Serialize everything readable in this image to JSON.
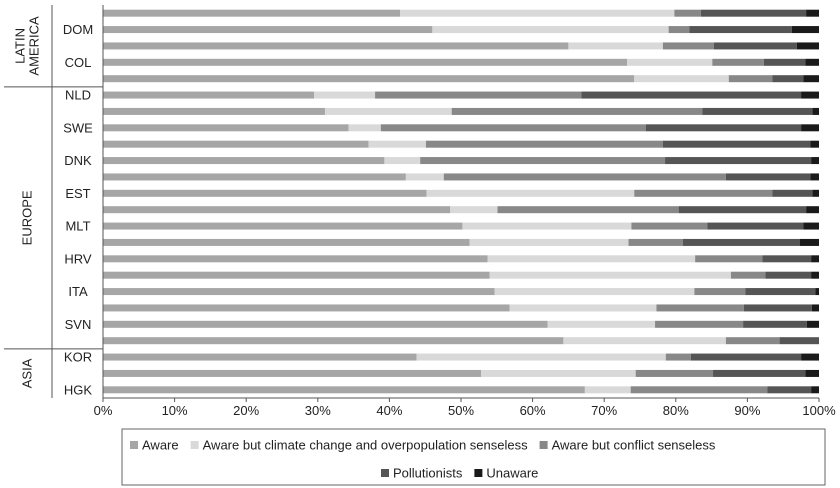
{
  "chart_data": {
    "type": "bar",
    "orientation": "horizontal",
    "stacked": true,
    "xlim": [
      0,
      100
    ],
    "x_ticks": [
      "0%",
      "10%",
      "20%",
      "30%",
      "40%",
      "50%",
      "60%",
      "70%",
      "80%",
      "90%",
      "100%"
    ],
    "grid": false,
    "legend_position": "bottom",
    "regions": [
      {
        "name": "LATIN AMERICA",
        "lines": [
          "LATIN",
          "AMERICA"
        ],
        "first_row": 0,
        "last_row": 4
      },
      {
        "name": "EUROPE",
        "lines": [
          "EUROPE"
        ],
        "first_row": 5,
        "last_row": 20
      },
      {
        "name": "ASIA",
        "lines": [
          "ASIA"
        ],
        "first_row": 21,
        "last_row": 23
      }
    ],
    "row_labels": [
      "",
      "DOM",
      "",
      "COL",
      "",
      "NLD",
      "",
      "SWE",
      "",
      "DNK",
      "",
      "EST",
      "",
      "MLT",
      "",
      "HRV",
      "",
      "ITA",
      "",
      "SVN",
      "",
      "KOR",
      "",
      "HGK"
    ],
    "series": [
      {
        "name": "Aware",
        "color": "#a6a6a6",
        "values": [
          41.5,
          46,
          65,
          73.2,
          74.2,
          29.5,
          31,
          34.3,
          37.1,
          39.3,
          42.3,
          45.2,
          48.5,
          50.2,
          51.2,
          53.7,
          54,
          54.7,
          56.8,
          62.1,
          64.3,
          43.8,
          52.8,
          67.3
        ]
      },
      {
        "name": "Aware but climate change and overpopulation senseless",
        "color": "#d9d9d9",
        "values": [
          38.3,
          33,
          13.2,
          11.9,
          13.2,
          8.5,
          17.7,
          4.5,
          8,
          5,
          5.3,
          29,
          6.6,
          23.6,
          22.2,
          29,
          33.7,
          27.9,
          20.5,
          15,
          22.7,
          34.8,
          21.6,
          6.4
        ]
      },
      {
        "name": "Aware but conflict senseless",
        "color": "#888888",
        "values": [
          3.7,
          2.9,
          7.1,
          7.2,
          6.1,
          28.8,
          35,
          37,
          33.1,
          34.2,
          39.4,
          19.3,
          25.3,
          10.6,
          7.6,
          9.4,
          4.8,
          7.1,
          12.2,
          12.3,
          7.5,
          3.5,
          10.8,
          19.1
        ]
      },
      {
        "name": "Pollutionists",
        "color": "#555555",
        "values": [
          14.7,
          14.3,
          11.6,
          5.8,
          4.3,
          30.7,
          15.4,
          21.7,
          20.6,
          20.4,
          11.8,
          5.6,
          17.8,
          13.4,
          16.3,
          6.8,
          6.4,
          9.8,
          9.5,
          8.9,
          5.5,
          15.4,
          12.9,
          6.1
        ]
      },
      {
        "name": "Unaware",
        "color": "#1a1a1a",
        "values": [
          1.8,
          3.8,
          3.1,
          1.9,
          2.2,
          2.5,
          0.9,
          2.5,
          1.2,
          1.1,
          1.2,
          0.9,
          1.8,
          2.2,
          2.7,
          1.1,
          1.1,
          0.5,
          1,
          1.7,
          0,
          2.5,
          1.9,
          1.1
        ]
      }
    ]
  }
}
